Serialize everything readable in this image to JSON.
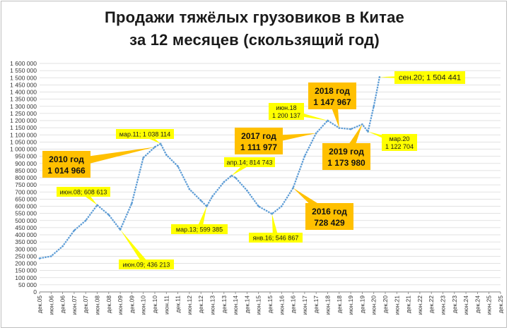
{
  "title_line1": "Продажи тяжёлых грузовиков в Китае",
  "title_line2": "за 12 месяцев (скользящий год)",
  "chart_data": {
    "type": "line",
    "ylim": [
      0,
      1600000
    ],
    "y_ticks": [
      "0",
      "50 000",
      "100 000",
      "150 000",
      "200 000",
      "250 000",
      "300 000",
      "350 000",
      "400 000",
      "450 000",
      "500 000",
      "550 000",
      "600 000",
      "650 000",
      "700 000",
      "750 000",
      "800 000",
      "850 000",
      "900 000",
      "950 000",
      "1 000 000",
      "1 050 000",
      "1 100 000",
      "1 150 000",
      "1 200 000",
      "1 250 000",
      "1 300 000",
      "1 350 000",
      "1 400 000",
      "1 450 000",
      "1 500 000",
      "1 550 000",
      "1 600 000"
    ],
    "x_ticks": [
      "дек.05",
      "июн.06",
      "дек.06",
      "июн.07",
      "дек.07",
      "июн.08",
      "дек.08",
      "июн.09",
      "дек.09",
      "июн.10",
      "дек.10",
      "июн.11",
      "дек.11",
      "июн.12",
      "дек.12",
      "июн.13",
      "дек.13",
      "июн.14",
      "дек.14",
      "июн.15",
      "дек.15",
      "июн.16",
      "дек.16",
      "июн.17",
      "дек.17",
      "июн.18",
      "дек.18",
      "июн.19",
      "дек.19",
      "июн.20",
      "дек.20",
      "июн.21",
      "дек.21",
      "июн.22",
      "дек.22",
      "июн.23",
      "дек.23",
      "июн.24",
      "дек.24",
      "июн.25",
      "дек.25"
    ],
    "series_color": "#5b9bd5",
    "points": [
      {
        "x": "дек.05",
        "y": 235000
      },
      {
        "x": "июн.06",
        "y": 250000
      },
      {
        "x": "дек.06",
        "y": 320000
      },
      {
        "x": "июн.07",
        "y": 430000
      },
      {
        "x": "дек.07",
        "y": 500000
      },
      {
        "x": "июн.08",
        "y": 608613
      },
      {
        "x": "дек.08",
        "y": 540000
      },
      {
        "x": "июн.09",
        "y": 436213
      },
      {
        "x": "дек.09",
        "y": 620000
      },
      {
        "x": "июн.10",
        "y": 940000
      },
      {
        "x": "дек.10",
        "y": 1014966
      },
      {
        "x": "мар.11",
        "y": 1038114
      },
      {
        "x": "июн.11",
        "y": 960000
      },
      {
        "x": "дек.11",
        "y": 880000
      },
      {
        "x": "июн.12",
        "y": 720000
      },
      {
        "x": "дек.12",
        "y": 640000
      },
      {
        "x": "мар.13",
        "y": 599385
      },
      {
        "x": "июн.13",
        "y": 670000
      },
      {
        "x": "дек.13",
        "y": 770000
      },
      {
        "x": "апр.14",
        "y": 814743
      },
      {
        "x": "июн.14",
        "y": 800000
      },
      {
        "x": "дек.14",
        "y": 710000
      },
      {
        "x": "июн.15",
        "y": 600000
      },
      {
        "x": "янв.16",
        "y": 546867
      },
      {
        "x": "июн.16",
        "y": 600000
      },
      {
        "x": "дек.16",
        "y": 728429
      },
      {
        "x": "июн.17",
        "y": 950000
      },
      {
        "x": "дек.17",
        "y": 1111977
      },
      {
        "x": "июн.18",
        "y": 1200137
      },
      {
        "x": "дек.18",
        "y": 1147967
      },
      {
        "x": "июн.19",
        "y": 1140000
      },
      {
        "x": "дек.19",
        "y": 1173980
      },
      {
        "x": "мар.20",
        "y": 1122704
      },
      {
        "x": "июн.20",
        "y": 1300000
      },
      {
        "x": "сен.20",
        "y": 1504441
      }
    ],
    "annotations_yellow": [
      {
        "label": "июн.08; 608 613"
      },
      {
        "label": "июн.09; 436 213"
      },
      {
        "label": "мар.11; 1 038 114"
      },
      {
        "label": "мар.13; 599 385"
      },
      {
        "label": "апр.14; 814 743"
      },
      {
        "label": "янв.16; 546 867"
      },
      {
        "label_line1": "июн.18",
        "label_line2": "1 200 137"
      },
      {
        "label_line1": "мар.20",
        "label_line2": "1 122 704"
      },
      {
        "label": "сен.20; 1 504 441"
      }
    ],
    "annotations_orange": [
      {
        "line1": "2010 год",
        "line2": "1 014 966"
      },
      {
        "line1": "2016 год",
        "line2": "728 429"
      },
      {
        "line1": "2017 год",
        "line2": "1 111 977"
      },
      {
        "line1": "2018 год",
        "line2": "1 147 967"
      },
      {
        "line1": "2019 год",
        "line2": "1 173 980"
      }
    ],
    "colors": {
      "callout_yellow": "#ffff00",
      "callout_orange": "#ffc000"
    }
  }
}
